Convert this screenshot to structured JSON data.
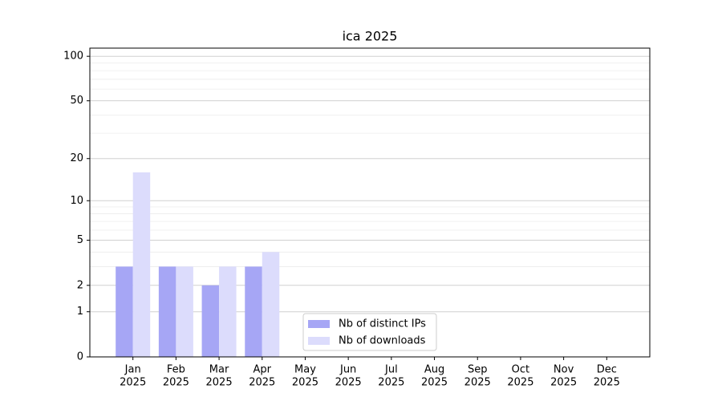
{
  "chart_data": {
    "type": "bar",
    "title": "ica 2025",
    "categories": [
      [
        "Jan",
        "2025"
      ],
      [
        "Feb",
        "2025"
      ],
      [
        "Mar",
        "2025"
      ],
      [
        "Apr",
        "2025"
      ],
      [
        "May",
        "2025"
      ],
      [
        "Jun",
        "2025"
      ],
      [
        "Jul",
        "2025"
      ],
      [
        "Aug",
        "2025"
      ],
      [
        "Sep",
        "2025"
      ],
      [
        "Oct",
        "2025"
      ],
      [
        "Nov",
        "2025"
      ],
      [
        "Dec",
        "2025"
      ]
    ],
    "series": [
      {
        "name": "Nb of distinct IPs",
        "color": "#a6a6f5",
        "values": [
          3,
          3,
          2,
          3,
          0,
          0,
          0,
          0,
          0,
          0,
          0,
          0
        ]
      },
      {
        "name": "Nb of downloads",
        "color": "#dcdcfc",
        "values": [
          16,
          3,
          3,
          4,
          0,
          0,
          0,
          0,
          0,
          0,
          0,
          0
        ]
      }
    ],
    "yscale": "symlog",
    "ylim": [
      0,
      113.5
    ],
    "yticks": [
      0,
      1,
      2,
      5,
      10,
      20,
      50,
      100
    ],
    "minor_yticks": [
      3,
      4,
      6,
      7,
      8,
      9,
      30,
      40,
      60,
      70,
      80,
      90
    ],
    "grid": true,
    "legend": "lower center"
  }
}
